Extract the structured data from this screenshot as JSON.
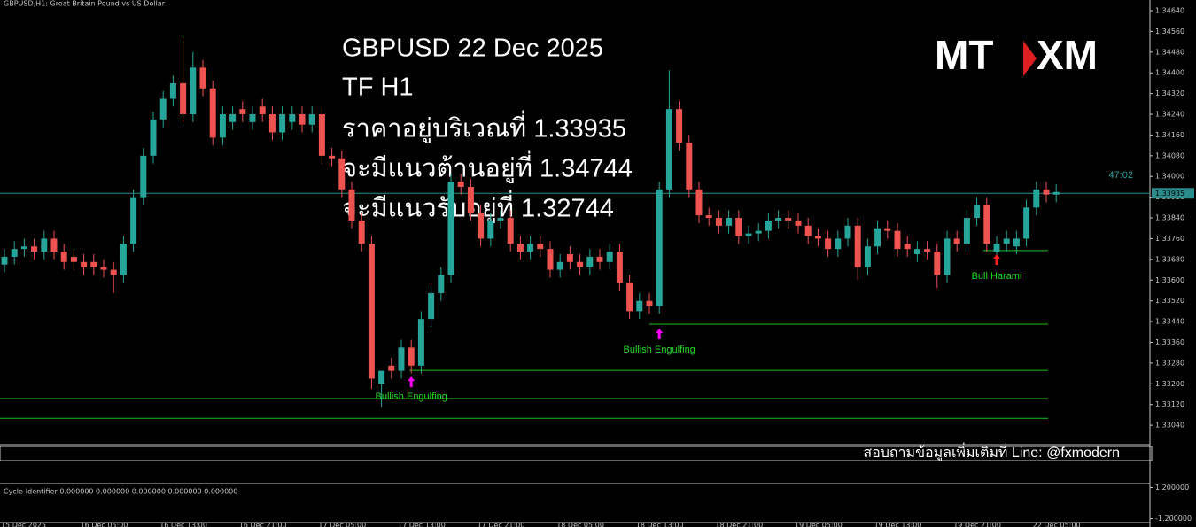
{
  "chart_data": {
    "type": "candlestick",
    "title": "GBPUSD,H1: Great Britain Pound vs US Dollar",
    "categories": [
      "15 Dec 2025",
      null,
      null,
      null,
      null,
      null,
      null,
      null,
      "16 Dec 05:00",
      null,
      null,
      null,
      null,
      null,
      null,
      null,
      "16 Dec 13:00",
      null,
      null,
      null,
      null,
      null,
      null,
      null,
      "16 Dec 21:00",
      null,
      null,
      null,
      null,
      null,
      null,
      null,
      "17 Dec 05:00",
      null,
      null,
      null,
      null,
      null,
      null,
      null,
      "17 Dec 13:00",
      null,
      null,
      null,
      null,
      null,
      null,
      null,
      "17 Dec 21:00",
      null,
      null,
      null,
      null,
      null,
      null,
      null,
      "18 Dec 05:00",
      null,
      null,
      null,
      null,
      null,
      null,
      null,
      "18 Dec 13:00",
      null,
      null,
      null,
      null,
      null,
      null,
      null,
      "18 Dec 21:00",
      null,
      null,
      null,
      null,
      null,
      null,
      null,
      "19 Dec 05:00",
      null,
      null,
      null,
      null,
      null,
      null,
      null,
      "19 Dec 13:00",
      null,
      null,
      null,
      null,
      null,
      null,
      null,
      "19 Dec 21:00",
      null,
      null,
      null,
      null,
      null,
      null,
      null,
      "22 Dec 05:00",
      null,
      null
    ],
    "open": [
      1.3366,
      1.3369,
      1.3372,
      1.3373,
      1.3371,
      1.3376,
      1.3371,
      1.3369,
      1.3367,
      1.3367,
      1.3365,
      1.3364,
      1.3362,
      1.3374,
      1.3392,
      1.3408,
      1.3422,
      1.343,
      1.3436,
      1.3424,
      1.3442,
      1.3434,
      1.3415,
      1.3421,
      1.3426,
      1.3421,
      1.3427,
      1.3424,
      1.3417,
      1.3421,
      1.3424,
      1.342,
      1.3424,
      1.3408,
      1.3407,
      1.3395,
      1.3383,
      1.3374,
      1.332,
      1.3327,
      1.3325,
      1.3334,
      1.3327,
      1.3345,
      1.3355,
      1.3362,
      1.3398,
      1.3396,
      1.3386,
      1.3376,
      1.3383,
      1.3384,
      1.3374,
      1.3371,
      1.3374,
      1.3372,
      1.3364,
      1.337,
      1.3367,
      1.3365,
      1.3369,
      1.3367,
      1.3371,
      1.3359,
      1.3348,
      1.3352,
      1.335,
      1.3395,
      1.3426,
      1.3413,
      1.3395,
      1.3385,
      1.3384,
      1.3381,
      1.3384,
      1.3377,
      1.3378,
      1.3379,
      1.3383,
      1.3384,
      1.3383,
      1.3381,
      1.3377,
      1.3376,
      1.3372,
      1.3376,
      1.3381,
      1.3365,
      1.3373,
      1.338,
      1.3379,
      1.3374,
      1.337,
      1.3372,
      1.3371,
      1.3362,
      1.3376,
      1.3374,
      1.3384,
      1.3389,
      1.3371,
      1.3374,
      1.3373,
      1.3376,
      1.3388,
      1.3395,
      1.3393
    ],
    "high": [
      1.3372,
      1.3375,
      1.3376,
      1.3376,
      1.3379,
      1.3379,
      1.3374,
      1.3372,
      1.337,
      1.337,
      1.3368,
      1.3367,
      1.3377,
      1.3395,
      1.3411,
      1.3425,
      1.3433,
      1.3439,
      1.3454,
      1.3448,
      1.3445,
      1.3437,
      1.3427,
      1.3427,
      1.3429,
      1.3427,
      1.343,
      1.3427,
      1.3427,
      1.3427,
      1.3427,
      1.3427,
      1.3427,
      1.3411,
      1.341,
      1.3398,
      1.3386,
      1.3377,
      1.3325,
      1.333,
      1.3337,
      1.3337,
      1.3348,
      1.3358,
      1.3365,
      1.3401,
      1.3401,
      1.3399,
      1.3389,
      1.3386,
      1.3387,
      1.3387,
      1.3377,
      1.3377,
      1.3377,
      1.3375,
      1.337,
      1.3373,
      1.337,
      1.3372,
      1.3372,
      1.3374,
      1.3374,
      1.3362,
      1.3355,
      1.3355,
      1.3398,
      1.3441,
      1.3429,
      1.3416,
      1.3398,
      1.3388,
      1.3387,
      1.3387,
      1.3387,
      1.3381,
      1.3382,
      1.3386,
      1.3387,
      1.3387,
      1.3386,
      1.3384,
      1.338,
      1.3379,
      1.3379,
      1.3384,
      1.3384,
      1.3376,
      1.3383,
      1.3383,
      1.3382,
      1.3377,
      1.3375,
      1.3375,
      1.3374,
      1.3379,
      1.3379,
      1.3387,
      1.3392,
      1.3392,
      1.3377,
      1.3379,
      1.3379,
      1.3391,
      1.3398,
      1.3398,
      1.3397
    ],
    "low": [
      1.3363,
      1.3366,
      1.3369,
      1.3368,
      1.3368,
      1.3368,
      1.3364,
      1.3364,
      1.3362,
      1.3362,
      1.3361,
      1.3355,
      1.3359,
      1.3371,
      1.3389,
      1.3405,
      1.3419,
      1.3427,
      1.3421,
      1.3421,
      1.3431,
      1.3412,
      1.3412,
      1.3418,
      1.3421,
      1.3418,
      1.3421,
      1.3414,
      1.3414,
      1.3418,
      1.3417,
      1.3417,
      1.3405,
      1.3404,
      1.3392,
      1.338,
      1.3371,
      1.3318,
      1.3311,
      1.3322,
      1.3322,
      1.3324,
      1.3324,
      1.3342,
      1.3352,
      1.3359,
      1.3393,
      1.3383,
      1.3373,
      1.3373,
      1.338,
      1.3371,
      1.3368,
      1.3368,
      1.3369,
      1.3361,
      1.3361,
      1.3364,
      1.3362,
      1.3362,
      1.3364,
      1.3364,
      1.3356,
      1.3345,
      1.3345,
      1.3347,
      1.3347,
      1.3392,
      1.341,
      1.3392,
      1.3382,
      1.3381,
      1.3378,
      1.3378,
      1.3374,
      1.3374,
      1.3375,
      1.3376,
      1.338,
      1.338,
      1.3378,
      1.3374,
      1.3373,
      1.3369,
      1.3369,
      1.3373,
      1.336,
      1.3362,
      1.337,
      1.3376,
      1.3369,
      1.3369,
      1.3367,
      1.3368,
      1.3357,
      1.3359,
      1.3371,
      1.3371,
      1.3381,
      1.3371,
      1.3368,
      1.3371,
      1.337,
      1.3373,
      1.3385,
      1.339,
      1.339
    ],
    "close": [
      1.3369,
      1.3372,
      1.3373,
      1.3371,
      1.3376,
      1.3371,
      1.3367,
      1.3367,
      1.3365,
      1.3365,
      1.3364,
      1.3362,
      1.3374,
      1.3392,
      1.3408,
      1.3422,
      1.343,
      1.3436,
      1.3424,
      1.3442,
      1.3434,
      1.3415,
      1.3424,
      1.3424,
      1.3424,
      1.3424,
      1.3424,
      1.3417,
      1.3424,
      1.3424,
      1.342,
      1.3424,
      1.3408,
      1.3407,
      1.3395,
      1.3383,
      1.3374,
      1.3322,
      1.3325,
      1.3325,
      1.3334,
      1.3327,
      1.3345,
      1.3355,
      1.3362,
      1.3398,
      1.3396,
      1.3386,
      1.3376,
      1.3383,
      1.3384,
      1.3374,
      1.3371,
      1.3374,
      1.3372,
      1.3364,
      1.3367,
      1.3367,
      1.3365,
      1.3369,
      1.3367,
      1.3371,
      1.3359,
      1.3348,
      1.3352,
      1.335,
      1.3395,
      1.3426,
      1.3413,
      1.3395,
      1.3385,
      1.3384,
      1.3381,
      1.3384,
      1.3377,
      1.3378,
      1.3379,
      1.3383,
      1.3384,
      1.3383,
      1.3381,
      1.3377,
      1.3376,
      1.3372,
      1.3376,
      1.3381,
      1.3365,
      1.3373,
      1.338,
      1.3379,
      1.3372,
      1.3372,
      1.3372,
      1.3371,
      1.3362,
      1.3376,
      1.3374,
      1.3384,
      1.3389,
      1.3374,
      1.3374,
      1.3376,
      1.3376,
      1.3388,
      1.3395,
      1.3393,
      1.3394
    ],
    "up_color": "#26a69a",
    "down_color": "#ef5350",
    "ylim": [
      1.32972,
      1.34681
    ],
    "yticks": [
      {
        "value": 1.3464,
        "label": "1.34640"
      },
      {
        "value": 1.3456,
        "label": "1.34560"
      },
      {
        "value": 1.3448,
        "label": "1.34480"
      },
      {
        "value": 1.344,
        "label": "1.34400"
      },
      {
        "value": 1.3432,
        "label": "1.34320"
      },
      {
        "value": 1.3424,
        "label": "1.34240"
      },
      {
        "value": 1.3416,
        "label": "1.34160"
      },
      {
        "value": 1.3408,
        "label": "1.34080"
      },
      {
        "value": 1.34,
        "label": "1.34000"
      },
      {
        "value": 1.3392,
        "label": "1.33920"
      },
      {
        "value": 1.3384,
        "label": "1.33840"
      },
      {
        "value": 1.3376,
        "label": "1.33760"
      },
      {
        "value": 1.3368,
        "label": "1.33680"
      },
      {
        "value": 1.336,
        "label": "1.33600"
      },
      {
        "value": 1.3352,
        "label": "1.33520"
      },
      {
        "value": 1.3344,
        "label": "1.33440"
      },
      {
        "value": 1.3336,
        "label": "1.33360"
      },
      {
        "value": 1.3328,
        "label": "1.33280"
      },
      {
        "value": 1.332,
        "label": "1.33200"
      },
      {
        "value": 1.3312,
        "label": "1.33120"
      },
      {
        "value": 1.3304,
        "label": "1.33040"
      }
    ],
    "current_price": {
      "value": 1.33935,
      "label": "1.33935"
    },
    "timer": "47:02",
    "levels": [
      1.33714,
      1.3343,
      1.33252,
      1.33143,
      1.33067
    ],
    "annotations": [
      {
        "text": "Bullish Engulfing",
        "color": "#ff00ff"
      },
      {
        "text": "Bullish Engulfing",
        "color": "#ff00ff"
      },
      {
        "text": "Bull Harami",
        "color": "#ff2020"
      }
    ]
  },
  "overlay": {
    "lines": [
      "GBPUSD 22 Dec 2025",
      "TF H1",
      "ราคาอยู่บริเวณที่ 1.33935",
      "จะมีแนวต้านอยู่ที่ 1.34744",
      "จะมีแนวรับอยู่ที่ 1.32744"
    ]
  },
  "logo": {
    "left": "MT",
    "right": "XM"
  },
  "footer": "สอบถามข้อมูลเพิ่มเติมที่ Line: @fxmodern",
  "indicator": {
    "label": "Cycle-Identifier 0.000000 0.000000 0.000000 0.000000 0.000000",
    "ylim": [
      -1.5,
      1.5
    ],
    "yticks": [
      {
        "value": 1.2,
        "label": "1.200000"
      },
      {
        "value": -1.2,
        "label": "-1.200000"
      }
    ]
  }
}
